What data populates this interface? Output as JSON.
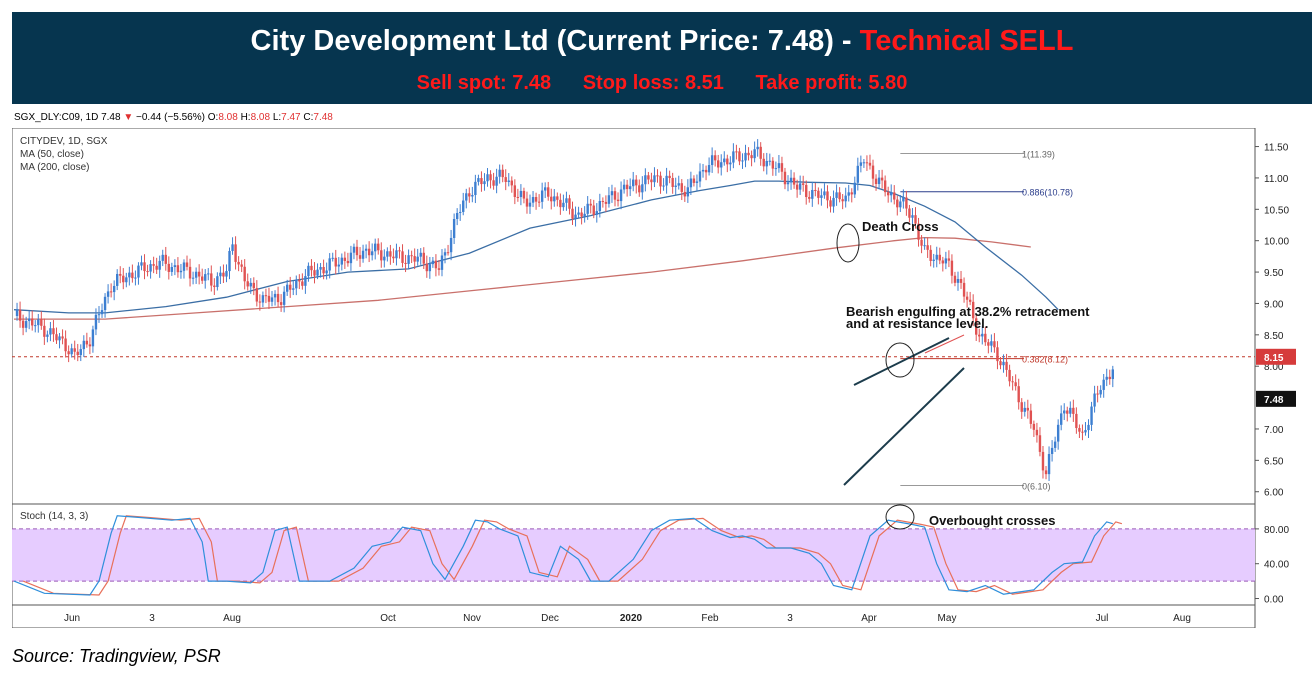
{
  "banner": {
    "title_main": "City Development Ltd (Current Price: 7.48) - ",
    "title_signal": "Technical SELL",
    "sell_spot": "Sell spot: 7.48",
    "stop_loss": "Stop loss: 8.51",
    "take_profit": "Take profit: 5.80"
  },
  "header": {
    "symbol": "SGX_DLY:C09, 1D",
    "last": "7.48",
    "change_arrow": "▼",
    "change": "−0.44 (−5.56%)",
    "o_label": "O:",
    "o": "8.08",
    "h_label": "H:",
    "h": "8.08",
    "l_label": "L:",
    "l": "7.47",
    "c_label": "C:",
    "c": "7.48"
  },
  "legend": {
    "name": "CITYDEV, 1D, SGX",
    "ma50": "MA (50, close)",
    "ma200": "MA (200, close)",
    "stoch": "Stoch (14, 3, 3)"
  },
  "annotations": {
    "death_cross": "Death Cross",
    "engulfing_1": "Bearish engulfing at 38.2% retracement",
    "engulfing_2": "and at resistance level.",
    "overbought": "Overbought crosses"
  },
  "source": "Source: Tradingview, PSR",
  "colors": {
    "banner_bg": "#06354f",
    "signal_red": "#ff1a1a",
    "up": "#26a69a",
    "up_fill": "#3d7fd1",
    "down": "#e05252",
    "ma50": "#3b6ea5",
    "ma200": "#c9706b",
    "stoch_k": "#2f8fdb",
    "stoch_d": "#e8705a",
    "stoch_band": "#e6ccff"
  },
  "chart_data": [
    {
      "type": "candlestick",
      "title": "CITYDEV, 1D, SGX",
      "x_ticks": [
        "Jun",
        "3",
        "Aug",
        "Oct",
        "Nov",
        "Dec",
        "2020",
        "Feb",
        "3",
        "Apr",
        "May",
        "Jul",
        "Aug"
      ],
      "y_ticks": [
        "11.50",
        "11.00",
        "10.50",
        "10.00",
        "9.50",
        "9.00",
        "8.50",
        "8.00",
        "7.00",
        "6.50",
        "6.00"
      ],
      "ylim": [
        5.9,
        11.7
      ],
      "price_path": [
        [
          0,
          8.8
        ],
        [
          10,
          8.6
        ],
        [
          18,
          8.3
        ],
        [
          20,
          8.15
        ],
        [
          25,
          8.45
        ],
        [
          27,
          8.7
        ],
        [
          32,
          9.3
        ],
        [
          40,
          9.5
        ],
        [
          48,
          9.65
        ],
        [
          58,
          9.5
        ],
        [
          65,
          9.35
        ],
        [
          70,
          9.5
        ],
        [
          72,
          9.95
        ],
        [
          76,
          9.35
        ],
        [
          82,
          9.05
        ],
        [
          88,
          9.1
        ],
        [
          96,
          9.45
        ],
        [
          106,
          9.65
        ],
        [
          116,
          9.85
        ],
        [
          126,
          9.75
        ],
        [
          134,
          9.7
        ],
        [
          140,
          9.55
        ],
        [
          142,
          9.8
        ],
        [
          146,
          10.4
        ],
        [
          150,
          10.8
        ],
        [
          156,
          11.0
        ],
        [
          162,
          11.0
        ],
        [
          168,
          10.6
        ],
        [
          176,
          10.75
        ],
        [
          186,
          10.4
        ],
        [
          194,
          10.6
        ],
        [
          202,
          10.85
        ],
        [
          212,
          11.0
        ],
        [
          222,
          10.8
        ],
        [
          228,
          11.2
        ],
        [
          236,
          11.3
        ],
        [
          244,
          11.4
        ],
        [
          250,
          11.2
        ],
        [
          258,
          10.85
        ],
        [
          266,
          10.7
        ],
        [
          274,
          10.65
        ],
        [
          280,
          11.3
        ],
        [
          286,
          10.85
        ],
        [
          292,
          10.6
        ],
        [
          296,
          10.4
        ],
        [
          300,
          9.8
        ],
        [
          306,
          9.7
        ],
        [
          312,
          9.3
        ],
        [
          318,
          8.5
        ],
        [
          324,
          8.2
        ],
        [
          330,
          7.6
        ],
        [
          336,
          7.0
        ],
        [
          340,
          6.3
        ],
        [
          346,
          7.4
        ],
        [
          352,
          6.9
        ],
        [
          358,
          7.7
        ],
        [
          362,
          7.95
        ]
      ],
      "ma50": [
        [
          0,
          8.9
        ],
        [
          18,
          8.85
        ],
        [
          30,
          8.85
        ],
        [
          50,
          8.95
        ],
        [
          70,
          9.1
        ],
        [
          90,
          9.35
        ],
        [
          110,
          9.5
        ],
        [
          130,
          9.55
        ],
        [
          150,
          9.8
        ],
        [
          170,
          10.2
        ],
        [
          190,
          10.4
        ],
        [
          210,
          10.65
        ],
        [
          226,
          10.8
        ],
        [
          236,
          10.88
        ],
        [
          244,
          10.95
        ],
        [
          252,
          10.95
        ],
        [
          262,
          10.93
        ],
        [
          274,
          10.92
        ],
        [
          282,
          10.88
        ],
        [
          290,
          10.75
        ],
        [
          300,
          10.55
        ],
        [
          310,
          10.3
        ],
        [
          320,
          9.9
        ],
        [
          332,
          9.45
        ],
        [
          340,
          9.1
        ],
        [
          344,
          8.9
        ]
      ],
      "ma200": [
        [
          0,
          8.75
        ],
        [
          30,
          8.75
        ],
        [
          60,
          8.85
        ],
        [
          90,
          8.95
        ],
        [
          120,
          9.05
        ],
        [
          150,
          9.2
        ],
        [
          180,
          9.35
        ],
        [
          210,
          9.5
        ],
        [
          240,
          9.68
        ],
        [
          270,
          9.88
        ],
        [
          290,
          10.0
        ],
        [
          300,
          10.05
        ],
        [
          310,
          10.04
        ],
        [
          322,
          9.98
        ],
        [
          335,
          9.9
        ]
      ],
      "levels": [
        {
          "label": "1(11.39)",
          "value": 11.39
        },
        {
          "label": "0.886(10.78)",
          "value": 10.78
        },
        {
          "label": "0.382(8.12)",
          "value": 8.12
        },
        {
          "label": "0(6.10)",
          "value": 6.1
        }
      ],
      "price_tags": [
        {
          "label": "8.15",
          "value": 8.15
        },
        {
          "label": "7.48",
          "value": 7.48
        }
      ]
    },
    {
      "type": "line",
      "title": "Stoch (14, 3, 3)",
      "y_ticks": [
        "80.00",
        "40.00",
        "0.00"
      ],
      "ylim": [
        -4,
        104
      ],
      "band": [
        20,
        80
      ],
      "series": [
        {
          "values": [
            [
              0,
              20
            ],
            [
              10,
              6
            ],
            [
              25,
              4
            ],
            [
              28,
              20
            ],
            [
              32,
              75
            ],
            [
              34,
              95
            ],
            [
              42,
              93
            ],
            [
              52,
              90
            ],
            [
              58,
              92
            ],
            [
              62,
              65
            ],
            [
              64,
              20
            ],
            [
              70,
              20
            ],
            [
              78,
              18
            ],
            [
              82,
              30
            ],
            [
              86,
              78
            ],
            [
              90,
              82
            ],
            [
              94,
              20
            ],
            [
              104,
              20
            ],
            [
              112,
              35
            ],
            [
              118,
              60
            ],
            [
              124,
              65
            ],
            [
              128,
              82
            ],
            [
              134,
              78
            ],
            [
              138,
              40
            ],
            [
              142,
              22
            ],
            [
              148,
              60
            ],
            [
              152,
              90
            ],
            [
              156,
              88
            ],
            [
              160,
              80
            ],
            [
              166,
              72
            ],
            [
              170,
              30
            ],
            [
              176,
              25
            ],
            [
              180,
              60
            ],
            [
              186,
              45
            ],
            [
              190,
              20
            ],
            [
              196,
              20
            ],
            [
              204,
              45
            ],
            [
              210,
              78
            ],
            [
              216,
              90
            ],
            [
              224,
              92
            ],
            [
              230,
              78
            ],
            [
              236,
              70
            ],
            [
              240,
              72
            ],
            [
              244,
              68
            ],
            [
              248,
              58
            ],
            [
              256,
              58
            ],
            [
              262,
              52
            ],
            [
              266,
              40
            ],
            [
              270,
              15
            ],
            [
              276,
              10
            ],
            [
              282,
              72
            ],
            [
              288,
              90
            ],
            [
              296,
              85
            ],
            [
              300,
              82
            ],
            [
              304,
              40
            ],
            [
              308,
              10
            ],
            [
              314,
              8
            ],
            [
              320,
              15
            ],
            [
              326,
              5
            ],
            [
              332,
              8
            ],
            [
              336,
              10
            ],
            [
              342,
              30
            ],
            [
              346,
              40
            ],
            [
              352,
              42
            ],
            [
              356,
              72
            ],
            [
              360,
              88
            ],
            [
              362,
              86
            ]
          ]
        }
      ]
    }
  ]
}
